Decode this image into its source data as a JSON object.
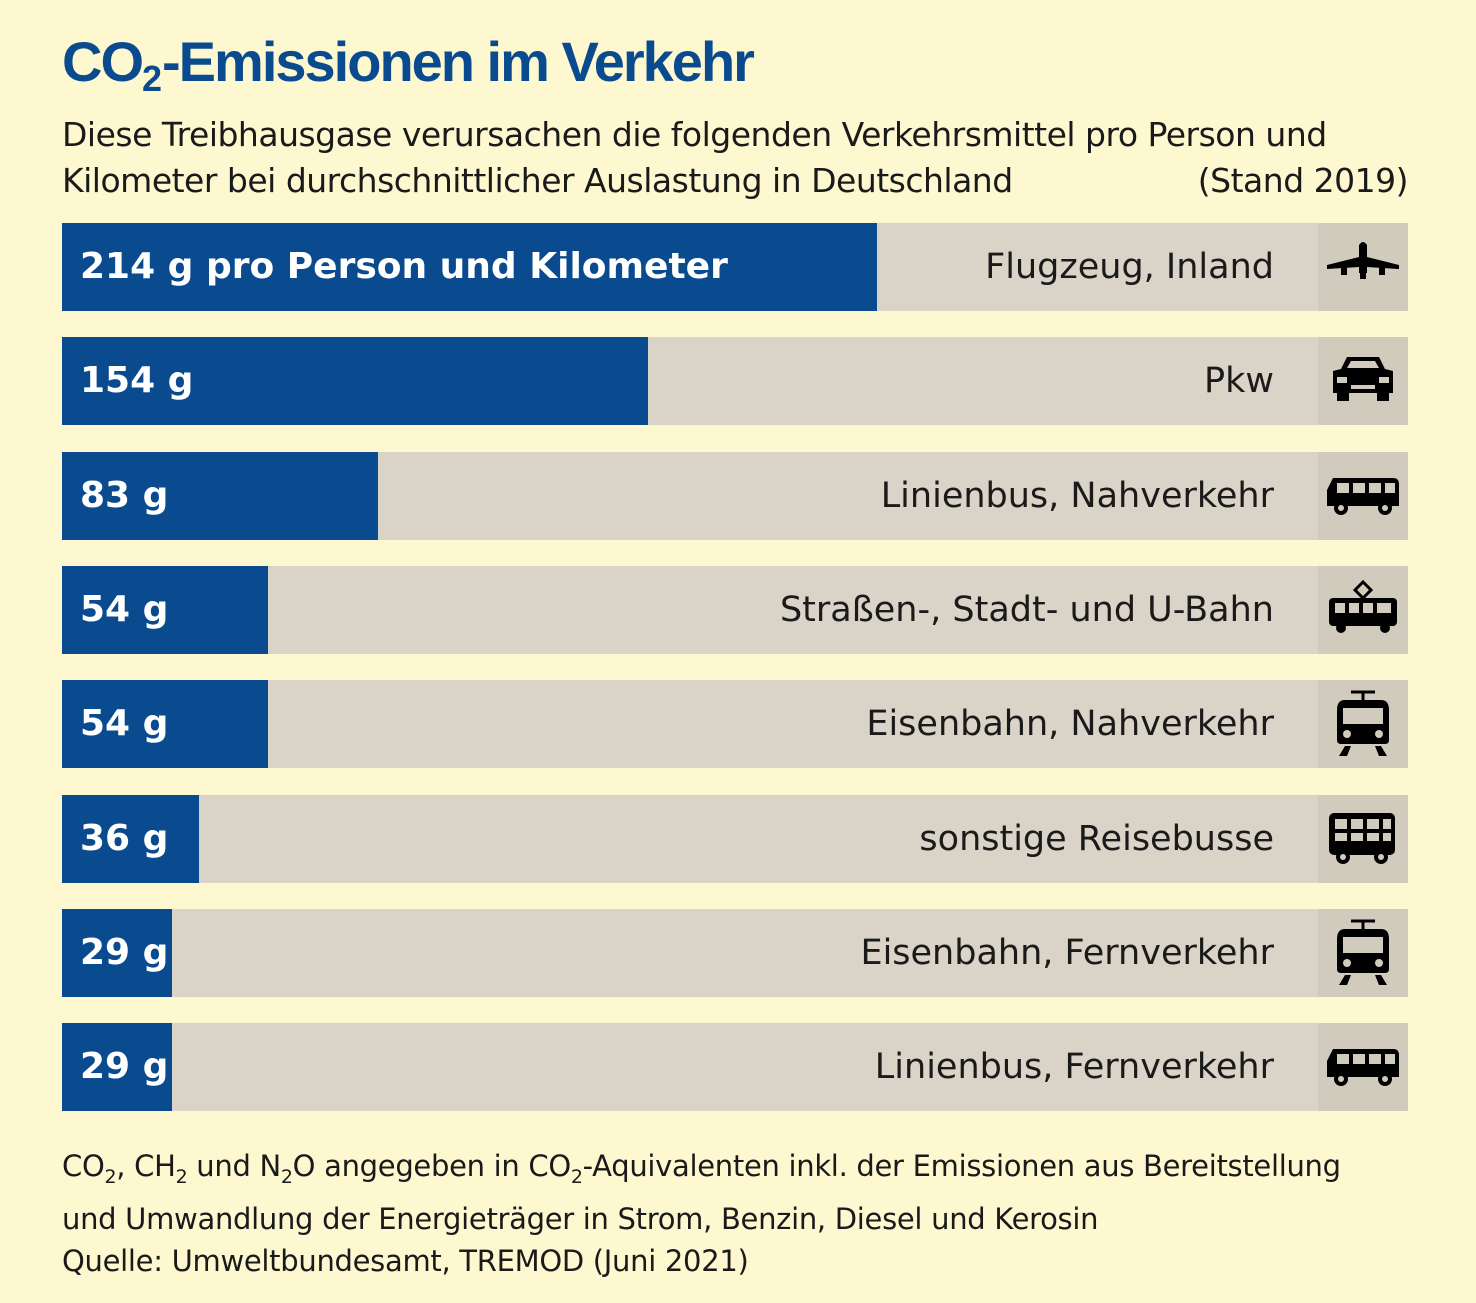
{
  "title": {
    "main": "CO",
    "sub": "2",
    "rest": "-Emissionen im Verkehr"
  },
  "subtitle": {
    "line1": "Diese Treibhausgase verursachen die folgenden Verkehrsmittel pro Person und",
    "line2": "Kilometer bei durchschnittlicher Auslastung in Deutschland",
    "stand": "(Stand 2019)"
  },
  "chart_data": {
    "type": "bar",
    "orientation": "horizontal",
    "title": "CO2-Emissionen im Verkehr",
    "unit": "g pro Person und Kilometer",
    "xlim": [
      0,
      353.5
    ],
    "categories": [
      "Flugzeug, Inland",
      "Pkw",
      "Linienbus, Nahverkehr",
      "Straßen-, Stadt- und U-Bahn",
      "Eisenbahn, Nahverkehr",
      "sonstige Reisebusse",
      "Eisenbahn, Fernverkehr",
      "Linienbus, Fernverkehr"
    ],
    "values": [
      214,
      154,
      83,
      54,
      54,
      36,
      29,
      29
    ],
    "value_labels": [
      "214 g pro Person und Kilometer",
      "154 g",
      "83 g",
      "54 g",
      "54 g",
      "36 g",
      "29 g",
      "29 g"
    ],
    "icons": [
      "airplane-icon",
      "car-icon",
      "bus-icon",
      "tram-icon",
      "train-icon",
      "coach-icon",
      "train-icon",
      "bus-icon"
    ],
    "colors": {
      "bar": "#0a4a8f",
      "track": "#d9d4c7",
      "icon_bg": "#d0cbbd",
      "background": "#fdf8cf",
      "title": "#0a4a8f"
    }
  },
  "footnote": {
    "p1a": "CO",
    "s1": "2",
    "p1b": ", CH",
    "s2": "2",
    "p1c": " und N",
    "s3": "2",
    "p1d": "O angegeben in CO",
    "s4": "2",
    "p1e": "-Aquivalenten inkl. der Emissionen aus Bereitstellung",
    "line2": "und Umwandlung der Energieträger in Strom, Benzin, Diesel und Kerosin",
    "line3": "Quelle: Umweltbundesamt, TREMOD (Juni 2021)"
  }
}
